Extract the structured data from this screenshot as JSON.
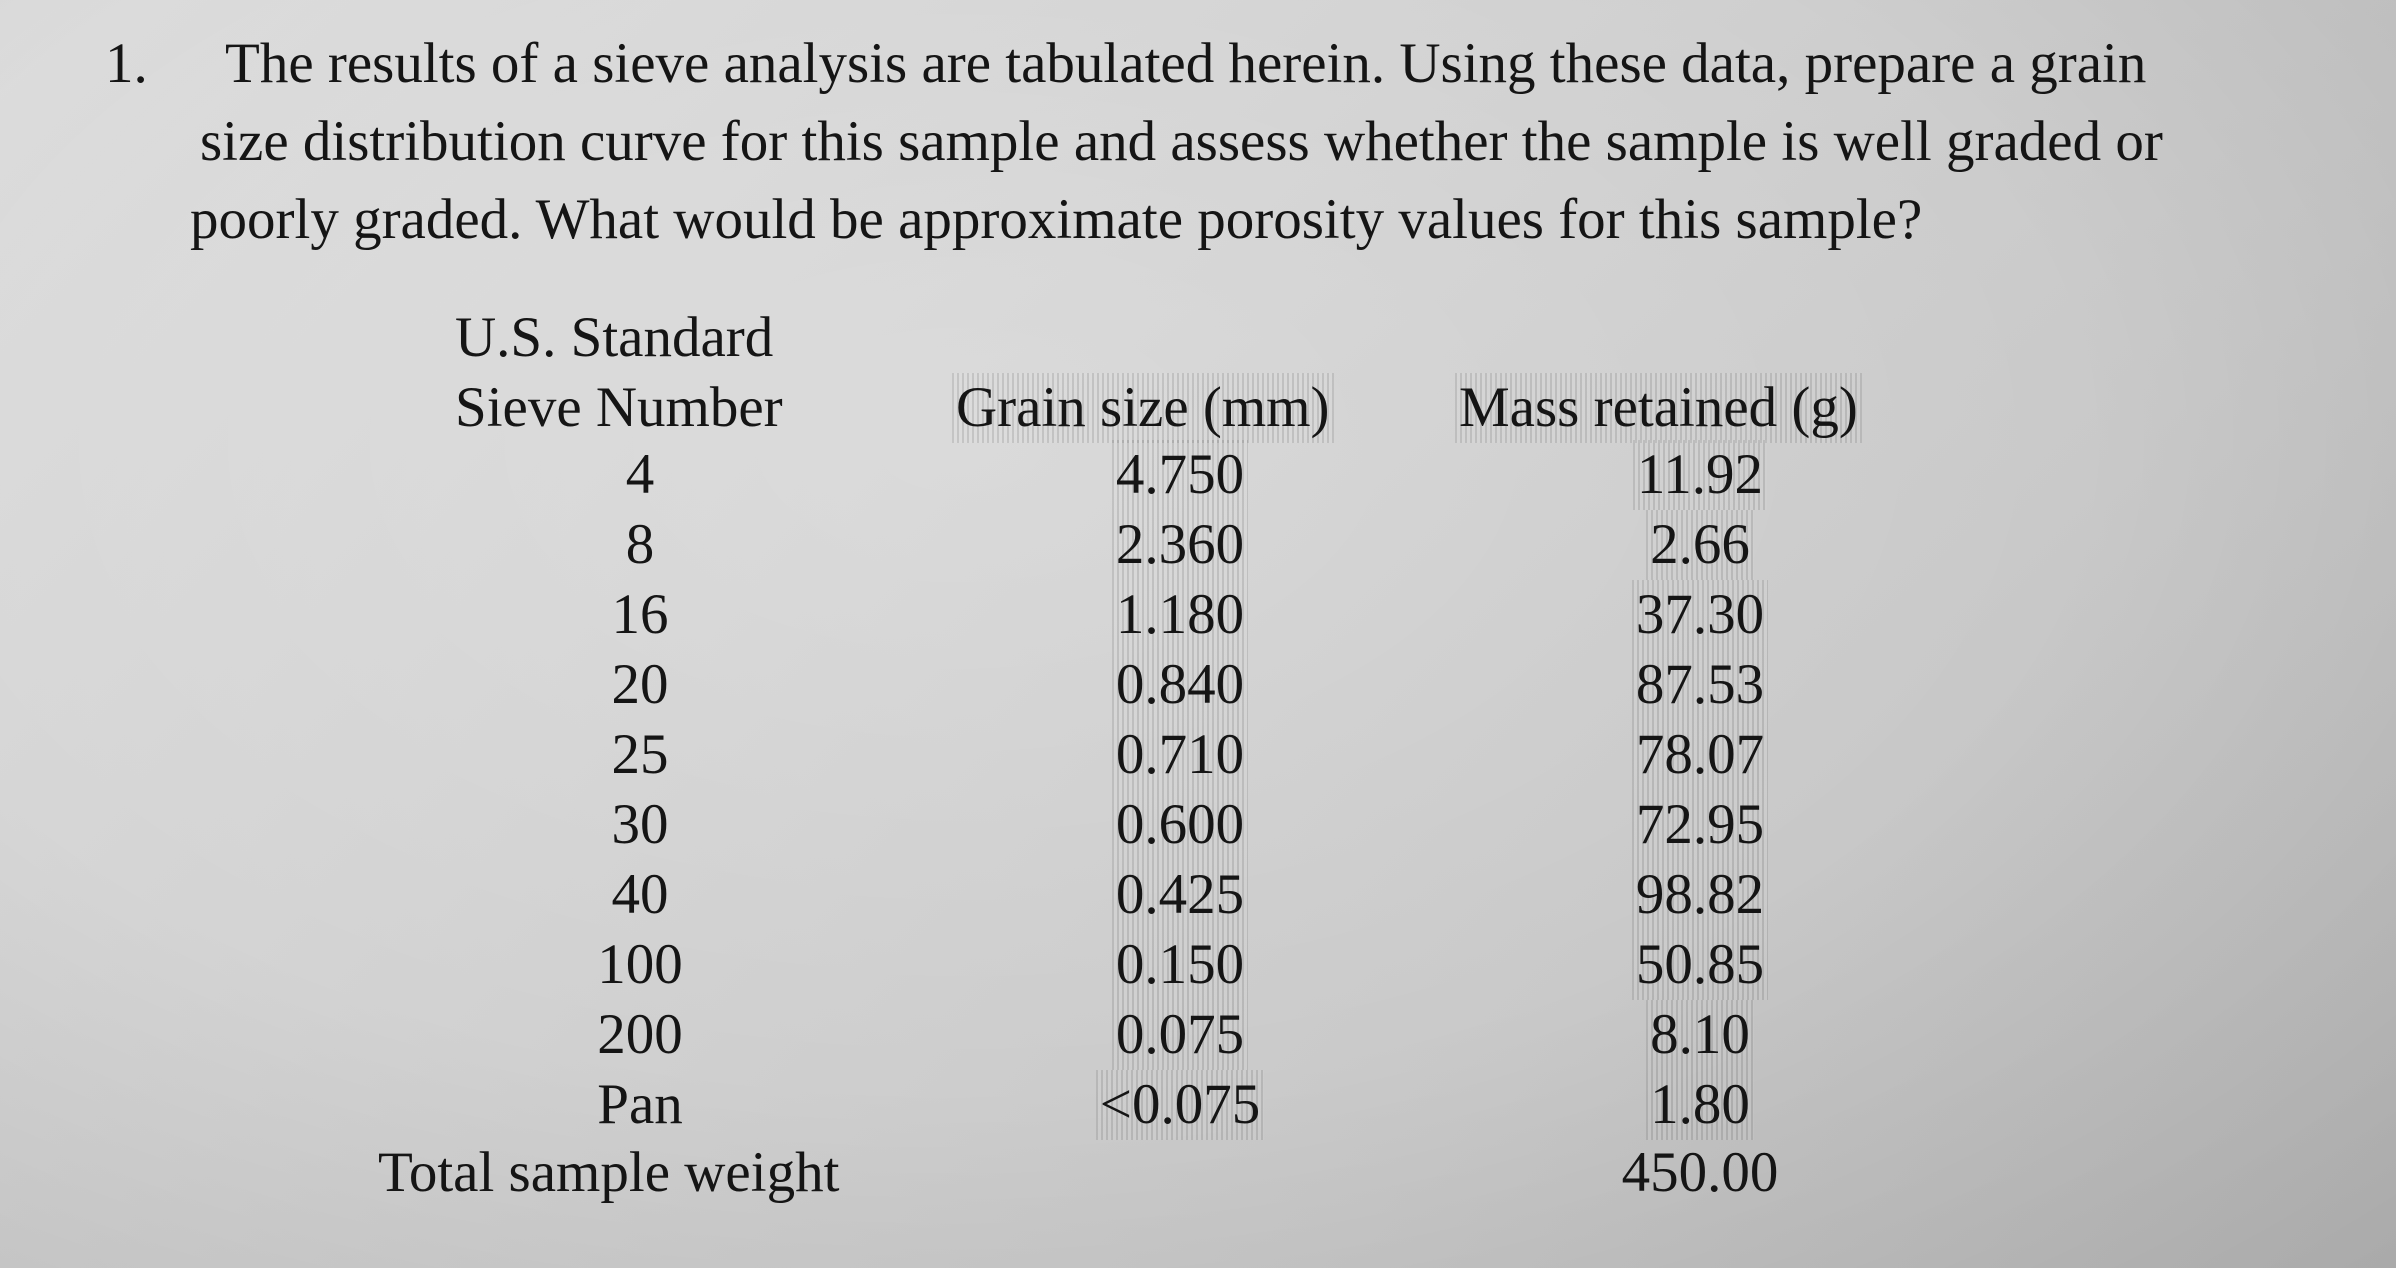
{
  "problem": {
    "number": "1.",
    "lines": [
      "The results of a sieve analysis are tabulated herein. Using these data, prepare a grain",
      "size distribution curve for this sample and assess whether the sample is well graded or",
      "poorly graded. What would be approximate porosity values for this sample?"
    ]
  },
  "table": {
    "headers": {
      "sieve_line1": "U.S. Standard",
      "sieve_line2": "Sieve Number",
      "grain_size": "Grain size (mm)",
      "mass_retained": "Mass retained (g)"
    },
    "rows": [
      {
        "sieve": "4",
        "grain_size": "4.750",
        "mass": "11.92"
      },
      {
        "sieve": "8",
        "grain_size": "2.360",
        "mass": "2.66"
      },
      {
        "sieve": "16",
        "grain_size": "1.180",
        "mass": "37.30"
      },
      {
        "sieve": "20",
        "grain_size": "0.840",
        "mass": "87.53"
      },
      {
        "sieve": "25",
        "grain_size": "0.710",
        "mass": "78.07"
      },
      {
        "sieve": "30",
        "grain_size": "0.600",
        "mass": "72.95"
      },
      {
        "sieve": "40",
        "grain_size": "0.425",
        "mass": "98.82"
      },
      {
        "sieve": "100",
        "grain_size": "0.150",
        "mass": "50.85"
      },
      {
        "sieve": "200",
        "grain_size": "0.075",
        "mass": "8.10"
      },
      {
        "sieve": "Pan",
        "grain_size": "<0.075",
        "mass": "1.80"
      }
    ],
    "total_label": "Total sample weight",
    "total_value": "450.00"
  }
}
